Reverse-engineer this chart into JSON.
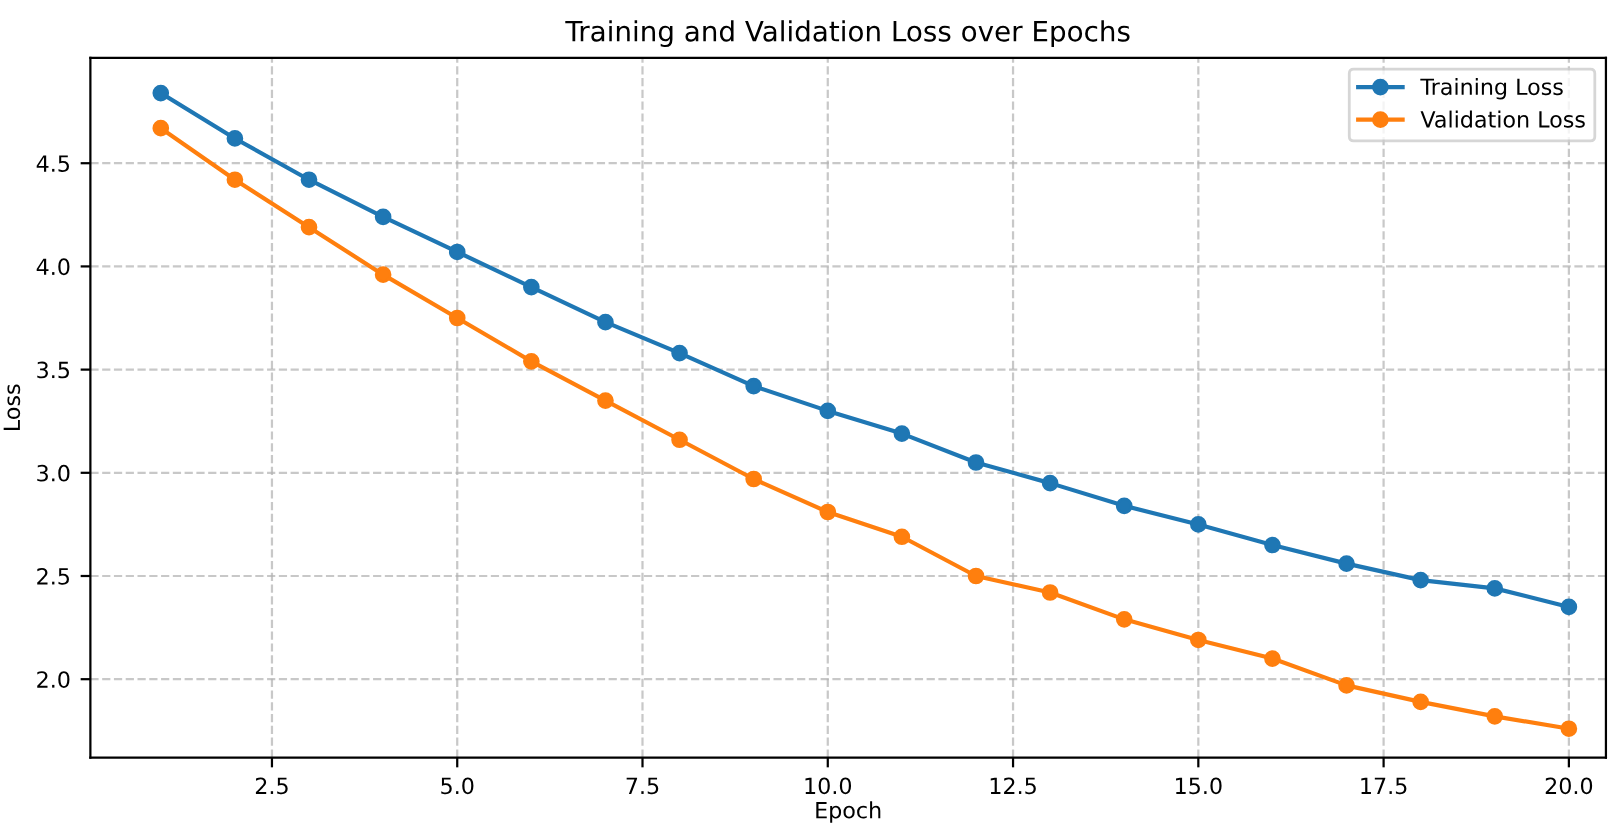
{
  "chart_data": {
    "type": "line",
    "title": "Training and Validation Loss over Epochs",
    "xlabel": "Epoch",
    "ylabel": "Loss",
    "x": [
      1,
      2,
      3,
      4,
      5,
      6,
      7,
      8,
      9,
      10,
      11,
      12,
      13,
      14,
      15,
      16,
      17,
      18,
      19,
      20
    ],
    "series": [
      {
        "name": "Training Loss",
        "color": "#1f77b4",
        "values": [
          4.84,
          4.62,
          4.42,
          4.24,
          4.07,
          3.9,
          3.73,
          3.58,
          3.42,
          3.3,
          3.19,
          3.05,
          2.95,
          2.84,
          2.75,
          2.65,
          2.56,
          2.48,
          2.44,
          2.35
        ]
      },
      {
        "name": "Validation Loss",
        "color": "#ff7f0e",
        "values": [
          4.67,
          4.42,
          4.19,
          3.96,
          3.75,
          3.54,
          3.35,
          3.16,
          2.97,
          2.81,
          2.69,
          2.5,
          2.42,
          2.29,
          2.19,
          2.1,
          1.97,
          1.89,
          1.82,
          1.76
        ]
      }
    ],
    "xlim": [
      0.05,
      20.5
    ],
    "xticks": [
      2.5,
      {
        "value": 5,
        "label": "5.0"
      },
      7.5,
      {
        "value": 10,
        "label": "10.0"
      },
      12.5,
      {
        "value": 15,
        "label": "15.0"
      },
      17.5,
      {
        "value": 20,
        "label": "20.0"
      }
    ],
    "ylim": [
      1.62,
      5.01
    ],
    "yticks": [
      {
        "value": 2,
        "label": "2.0"
      },
      2.5,
      {
        "value": 3,
        "label": "3.0"
      },
      3.5,
      {
        "value": 4,
        "label": "4.0"
      },
      4.5
    ],
    "grid": true,
    "legend": "top right",
    "marker": "circle",
    "line_style": "solid"
  }
}
